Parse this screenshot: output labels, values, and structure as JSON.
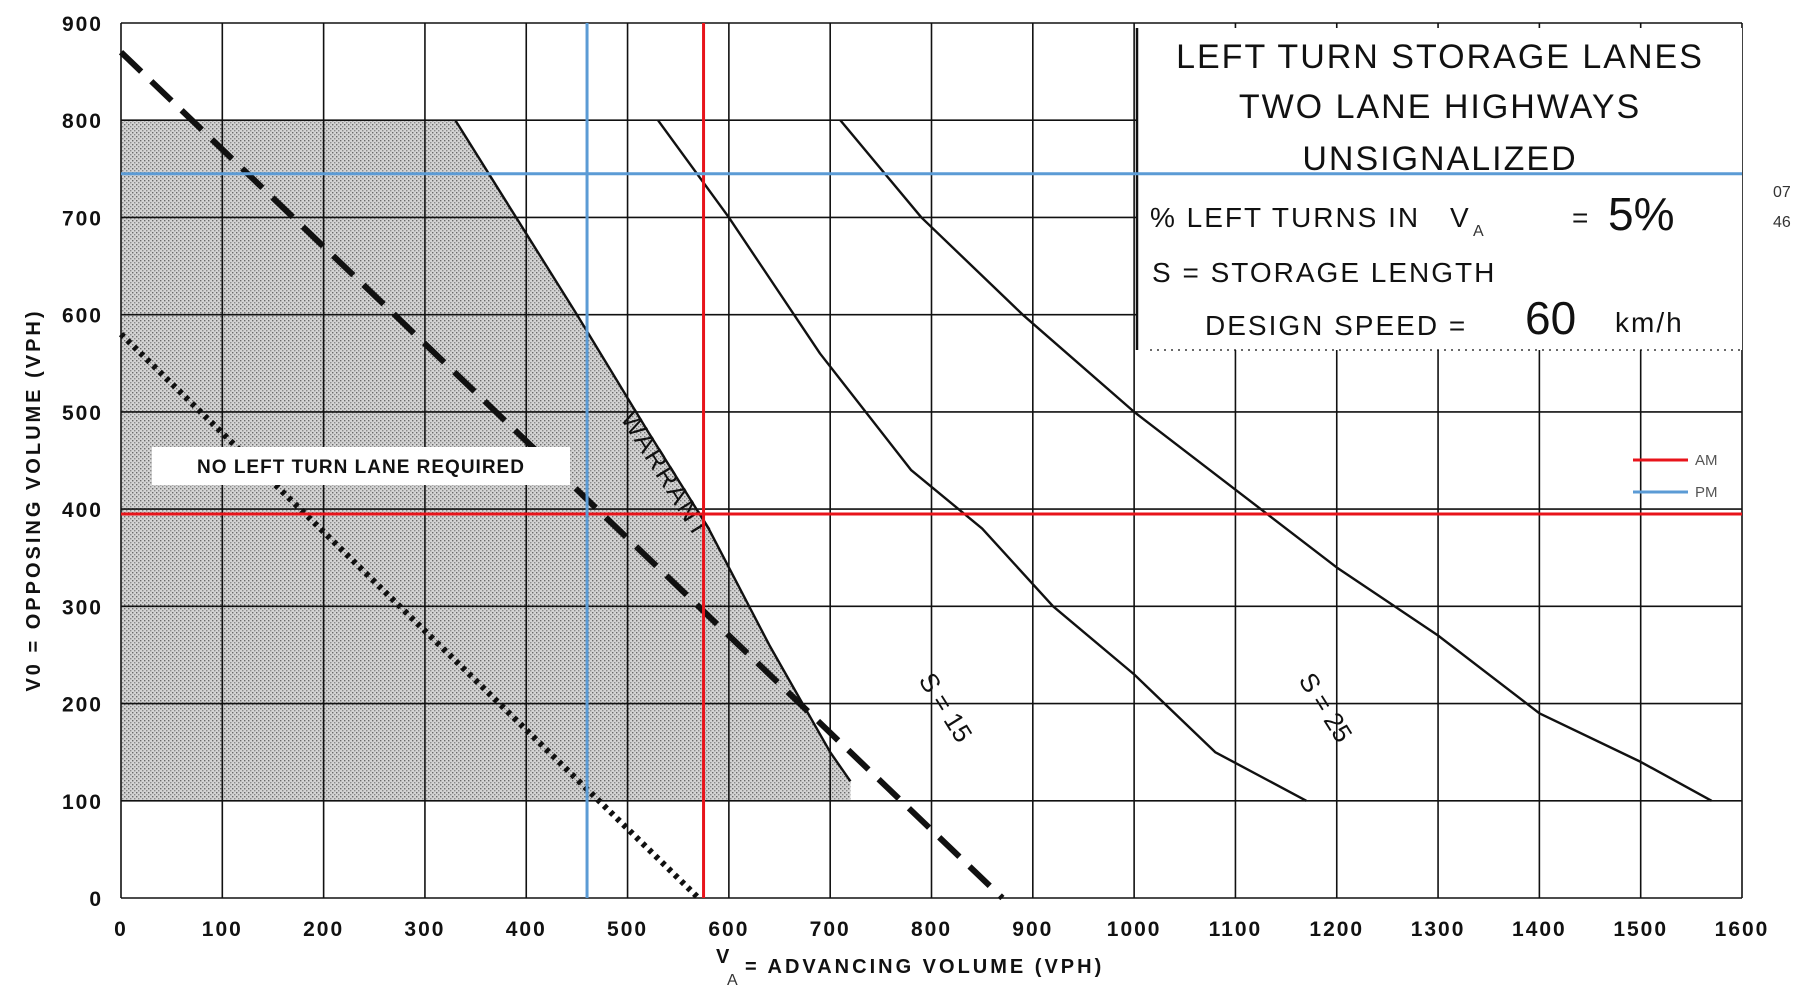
{
  "chart_data": {
    "type": "line",
    "title_lines": [
      "LEFT TURN STORAGE LANES",
      "TWO LANE HIGHWAYS",
      "UNSIGNALIZED"
    ],
    "info": {
      "left_turns_label": "% LEFT TURNS IN",
      "left_turns_var": "V",
      "left_turns_sub": "A",
      "left_turns_eq": "=",
      "left_turns_value": "5%",
      "storage_label": "S = STORAGE LENGTH",
      "speed_label": "DESIGN SPEED =",
      "speed_value": "60",
      "speed_unit": "km/h"
    },
    "xlabel_var": "V",
    "xlabel_sub": "A",
    "xlabel": "= ADVANCING VOLUME (VPH)",
    "ylabel": "V0 = OPPOSING VOLUME (VPH)",
    "xlim": [
      0,
      1600
    ],
    "ylim": [
      0,
      900
    ],
    "xticks": [
      0,
      100,
      200,
      300,
      400,
      500,
      600,
      700,
      800,
      900,
      1000,
      1100,
      1200,
      1300,
      1400,
      1500,
      1600
    ],
    "yticks": [
      0,
      100,
      200,
      300,
      400,
      500,
      600,
      700,
      800,
      900
    ],
    "xtick_labels": [
      "0",
      "100",
      "200",
      "300",
      "400",
      "500",
      "600",
      "700",
      "800",
      "900",
      "1000",
      "1100",
      "1200",
      "1300",
      "1400",
      "1500",
      "1600"
    ],
    "ytick_labels": [
      "0",
      "100",
      "200",
      "300",
      "400",
      "500",
      "600",
      "700",
      "800",
      "900"
    ],
    "grid": true,
    "region_label": "NO LEFT TURN LANE REQUIRED",
    "series": [
      {
        "name": "WARRANT",
        "style": "solid",
        "x": [
          330,
          390,
          450,
          520,
          580,
          640,
          700,
          720
        ],
        "y": [
          800,
          700,
          600,
          480,
          380,
          260,
          150,
          120
        ]
      },
      {
        "name": "S = 15",
        "style": "solid",
        "x": [
          530,
          600,
          690,
          780,
          850,
          920,
          1000,
          1080,
          1170
        ],
        "y": [
          800,
          700,
          560,
          440,
          380,
          300,
          230,
          150,
          100
        ]
      },
      {
        "name": "S = 25",
        "style": "solid",
        "x": [
          710,
          790,
          890,
          1000,
          1100,
          1200,
          1300,
          1400,
          1500,
          1570
        ],
        "y": [
          800,
          700,
          600,
          500,
          420,
          340,
          270,
          190,
          140,
          100
        ]
      },
      {
        "style": "dashed",
        "x": [
          0,
          870
        ],
        "y": [
          870,
          0
        ]
      },
      {
        "style": "dotted",
        "x": [
          0,
          570
        ],
        "y": [
          580,
          0
        ]
      }
    ],
    "reference_lines": [
      {
        "name": "AM",
        "color": "#e8141b",
        "x": 575,
        "y": 395
      },
      {
        "name": "PM",
        "color": "#5b9bd5",
        "x": 460,
        "y": 745
      }
    ],
    "legend": {
      "position": "right",
      "items": [
        "AM",
        "PM"
      ]
    },
    "edge_text": [
      "07",
      "46"
    ]
  }
}
